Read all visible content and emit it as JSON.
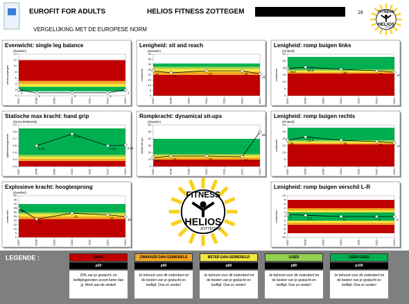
{
  "header": {
    "title": "EUROFIT FOR ADULTS",
    "club": "HELIOS FITNESS ZOTTEGEM",
    "page": "16",
    "subtitle": "VERGELIJKING MET DE EUROPESE NORM"
  },
  "logo": {
    "top": "FITNESS",
    "name": "HELIOS",
    "place": "ZOTTEGEM"
  },
  "chart_data": [
    {
      "type": "line",
      "title": "Evenwicht: single leg balance",
      "subtitle": "(Zweden)",
      "y_label": "aantal pogingen",
      "x": [
        2007,
        2008,
        2010,
        2012,
        2013
      ],
      "values": [
        2,
        1,
        1,
        1,
        2
      ],
      "xlim": [
        2007,
        2013
      ],
      "xticks": [
        2007,
        2008,
        2009,
        2010,
        2011,
        2012,
        2013
      ],
      "ylim": [
        0,
        14
      ],
      "yticks": [
        0,
        2,
        4,
        6,
        8,
        10,
        12,
        14
      ],
      "bands": [
        {
          "from": 5,
          "to": 12,
          "color": "#c00000"
        },
        {
          "from": 4,
          "to": 5,
          "color": "#f5a623"
        },
        {
          "from": 3,
          "to": 4,
          "color": "#f4e542"
        },
        {
          "from": 1.5,
          "to": 3,
          "color": "#00b050"
        }
      ]
    },
    {
      "type": "line",
      "title": "Lenigheid: sit and reach",
      "subtitle": "(Zweden)",
      "y_label": "centimeter",
      "x": [
        2007,
        2008,
        2010,
        2012,
        2013
      ],
      "values": [
        24,
        22,
        24,
        24,
        21
      ],
      "xlim": [
        2007,
        2013
      ],
      "xticks": [
        2007,
        2008,
        2009,
        2010,
        2011,
        2012,
        2013
      ],
      "ylim": [
        0,
        40
      ],
      "yticks": [
        0,
        5,
        10,
        15,
        20,
        25,
        30,
        35,
        40
      ],
      "bands": [
        {
          "from": 0,
          "to": 20,
          "color": "#c00000"
        },
        {
          "from": 20,
          "to": 23,
          "color": "#f5a623"
        },
        {
          "from": 23,
          "to": 26,
          "color": "#f4e542"
        },
        {
          "from": 26,
          "to": 28,
          "color": "#92d050"
        },
        {
          "from": 28,
          "to": 31,
          "color": "#00b050"
        }
      ]
    },
    {
      "type": "line",
      "title": "Lenigheid: romp buigen links",
      "subtitle": "(Finland)",
      "y_label": "centimeter",
      "x": [
        2007,
        2008,
        2010,
        2012,
        2013
      ],
      "values": [
        19.6,
        20.6,
        19,
        18,
        17
      ],
      "xlim": [
        2007,
        2013
      ],
      "xticks": [
        2007,
        2008,
        2009,
        2010,
        2011,
        2012,
        2013
      ],
      "ylim": [
        0,
        30
      ],
      "yticks": [
        0,
        5,
        10,
        15,
        20,
        25,
        30
      ],
      "bands": [
        {
          "from": 0,
          "to": 16,
          "color": "#c00000"
        },
        {
          "from": 16,
          "to": 17,
          "color": "#f5a623"
        },
        {
          "from": 17,
          "to": 18,
          "color": "#f4e542"
        },
        {
          "from": 18,
          "to": 19,
          "color": "#92d050"
        },
        {
          "from": 19,
          "to": 28,
          "color": "#00b050"
        }
      ]
    },
    {
      "type": "line",
      "title": "Statische max kracht: hand grip",
      "subtitle": "(Groot Brittannië)",
      "y_label": "kg/lichaamsgewicht",
      "x": [
        2008,
        2010,
        2012,
        2013
      ],
      "values": [
        0.6,
        0.77,
        0.6,
        0.61
      ],
      "value_labels": [
        "0.60",
        "0.77",
        "0.60",
        "0.61"
      ],
      "xlim": [
        2007,
        2013
      ],
      "xticks": [
        2007,
        2008,
        2009,
        2010,
        2011,
        2012,
        2013
      ],
      "ylim": [
        0.3,
        0.9
      ],
      "yticks": [
        0.3,
        0.4,
        0.5,
        0.6,
        0.7,
        0.8,
        0.9
      ],
      "bands": [
        {
          "from": 0.3,
          "to": 0.38,
          "color": "#c00000"
        },
        {
          "from": 0.38,
          "to": 0.41,
          "color": "#f5a623"
        },
        {
          "from": 0.41,
          "to": 0.44,
          "color": "#f4e542"
        },
        {
          "from": 0.44,
          "to": 0.47,
          "color": "#92d050"
        },
        {
          "from": 0.47,
          "to": 0.85,
          "color": "#00b050"
        }
      ]
    },
    {
      "type": "line",
      "title": "Rompkracht: dynamical sit-ups",
      "subtitle": "(Zweden)",
      "y_label": "aantal sit-ups",
      "x": [
        2007,
        2008,
        2010,
        2012,
        2013
      ],
      "values": [
        13,
        15,
        15,
        14,
        50
      ],
      "xlim": [
        2007,
        2013
      ],
      "xticks": [
        2007,
        2008,
        2009,
        2010,
        2011,
        2012,
        2013
      ],
      "ylim": [
        0,
        60
      ],
      "yticks": [
        0,
        10,
        20,
        30,
        40,
        50,
        60
      ],
      "bands": [
        {
          "from": 0,
          "to": 10,
          "color": "#c00000"
        },
        {
          "from": 10,
          "to": 13,
          "color": "#f5a623"
        },
        {
          "from": 13,
          "to": 16,
          "color": "#f4e542"
        },
        {
          "from": 16,
          "to": 18,
          "color": "#92d050"
        },
        {
          "from": 18,
          "to": 40,
          "color": "#00b050"
        }
      ]
    },
    {
      "type": "line",
      "title": "Lenigheid: romp buigen rechts",
      "subtitle": "(Finland)",
      "y_label": "centimeter",
      "x": [
        2007,
        2008,
        2010,
        2012,
        2013
      ],
      "values": [
        19,
        21.4,
        19,
        18,
        17
      ],
      "xlim": [
        2007,
        2013
      ],
      "xticks": [
        2007,
        2008,
        2009,
        2010,
        2011,
        2012,
        2013
      ],
      "ylim": [
        0,
        30
      ],
      "yticks": [
        0,
        5,
        10,
        15,
        20,
        25,
        30
      ],
      "bands": [
        {
          "from": 0,
          "to": 16,
          "color": "#c00000"
        },
        {
          "from": 16,
          "to": 17,
          "color": "#f5a623"
        },
        {
          "from": 17,
          "to": 18,
          "color": "#f4e542"
        },
        {
          "from": 18,
          "to": 19,
          "color": "#92d050"
        },
        {
          "from": 19,
          "to": 28,
          "color": "#00b050"
        }
      ]
    },
    {
      "type": "line",
      "title": "Explosieve kracht: hoogtesprong",
      "subtitle": "(Zweden)",
      "y_label": "centimeter",
      "x": [
        2007,
        2008,
        2010,
        2012,
        2013
      ],
      "values": [
        35,
        22,
        29,
        27,
        25
      ],
      "xlim": [
        2007,
        2013
      ],
      "xticks": [
        2007,
        2008,
        2009,
        2010,
        2011,
        2012,
        2013
      ],
      "ylim": [
        0,
        50
      ],
      "yticks": [
        0,
        5,
        10,
        15,
        20,
        25,
        30,
        35,
        40,
        45,
        50
      ],
      "bands": [
        {
          "from": 0,
          "to": 22,
          "color": "#c00000"
        },
        {
          "from": 22,
          "to": 25,
          "color": "#f5a623"
        },
        {
          "from": 25,
          "to": 28,
          "color": "#f4e542"
        },
        {
          "from": 28,
          "to": 30,
          "color": "#92d050"
        },
        {
          "from": 30,
          "to": 40,
          "color": "#00b050"
        }
      ]
    },
    {
      "type": "line",
      "title": "Lenigheid: romp buigen verschil L-R",
      "y_label": "centimeter",
      "x": [
        2007,
        2008,
        2010,
        2012,
        2013
      ],
      "values": [
        1,
        0.6,
        0,
        0,
        0
      ],
      "xlim": [
        2007,
        2013
      ],
      "xticks": [
        2007,
        2008,
        2009,
        2010,
        2011,
        2012,
        2013
      ],
      "ylim": [
        -10,
        10
      ],
      "yticks": [
        -10,
        -8,
        -6,
        -4,
        -2,
        0,
        2,
        4,
        6,
        8,
        10
      ],
      "bands": [
        {
          "from": 4,
          "to": 8,
          "color": "#c00000"
        },
        {
          "from": 3,
          "to": 4,
          "color": "#f5a623"
        },
        {
          "from": 2,
          "to": 3,
          "color": "#f4e542"
        },
        {
          "from": -2,
          "to": 2,
          "color": "#00b050"
        },
        {
          "from": -3,
          "to": -2,
          "color": "#f4e542"
        },
        {
          "from": -4,
          "to": -3,
          "color": "#f5a623"
        },
        {
          "from": -8,
          "to": -4,
          "color": "#c00000"
        }
      ]
    }
  ],
  "legend": {
    "title": "LEGENDE :",
    "items": [
      {
        "label": "ZWAK",
        "level": "p20",
        "color": "#c00000",
        "text": "20% van je geslacht- en leeftijdsgenoten scoort beter dan jij. Werk aan de winkel!"
      },
      {
        "label": "ZWAKKER DAN GEMIDDELD",
        "level": "p40",
        "color": "#f5a623",
        "text": "Je behoort voor dit onderdeel tot de besten van je geslacht en leeftijd. Doe zo verder!"
      },
      {
        "label": "BETER DAN GEMIDDELD",
        "level": "p60",
        "color": "#f4e542",
        "text": "Je behoort voor dit onderdeel tot de besten van je geslacht en leeftijd. Doe zo verder!"
      },
      {
        "label": "GOED",
        "level": "p80",
        "color": "#92d050",
        "text": "Je behoort voor dit onderdeel tot de besten van je geslacht en leeftijd. Doe zo verder!"
      },
      {
        "label": "ZEER GOED",
        "level": "p100",
        "color": "#00b050",
        "text": "Je behoort voor dit onderdeel tot de besten van je geslacht en leeftijd. Doe zo verder!"
      }
    ]
  }
}
